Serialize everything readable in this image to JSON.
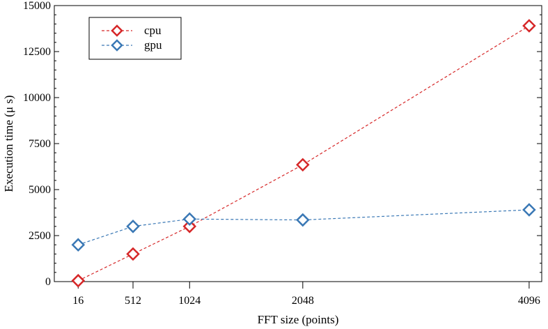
{
  "chart_data": {
    "type": "line",
    "xlabel": "FFT size (points)",
    "ylabel": "Execution time (μ s)",
    "x": [
      16,
      512,
      1024,
      2048,
      4096
    ],
    "x_tick_labels": [
      "16",
      "512",
      "1024",
      "2048",
      "4096"
    ],
    "y_tick_labels": [
      "0",
      "2500",
      "5000",
      "7500",
      "10000",
      "12500",
      "15000"
    ],
    "ylim": [
      0,
      15000
    ],
    "xlim": [
      -200,
      4210
    ],
    "grid": false,
    "legend_position": "top-left",
    "series": [
      {
        "name": "cpu",
        "color": "#d62728",
        "marker": "diamond",
        "line_style": "dashed",
        "values": [
          50,
          1500,
          3000,
          6350,
          13900
        ]
      },
      {
        "name": "gpu",
        "color": "#3a78b5",
        "marker": "diamond",
        "line_style": "dashed",
        "values": [
          2000,
          3000,
          3400,
          3350,
          3900
        ]
      }
    ]
  }
}
